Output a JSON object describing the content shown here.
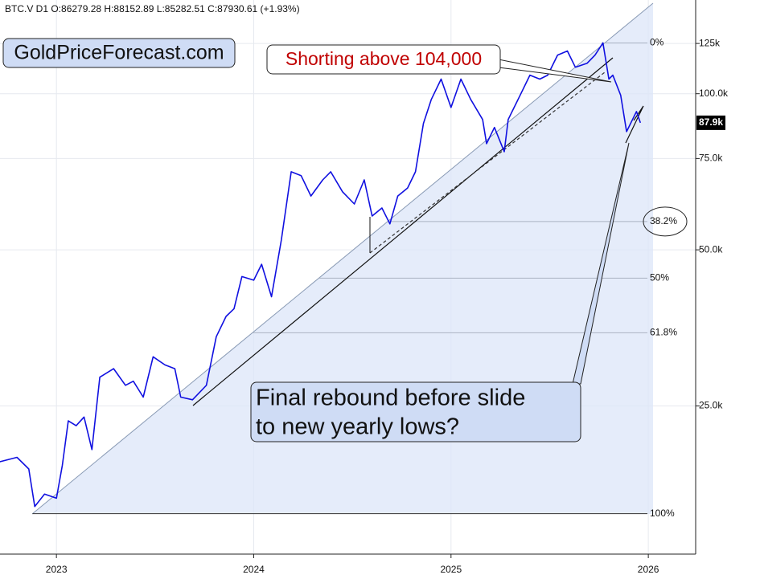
{
  "chart_data": {
    "type": "line",
    "header": "BTC.V  D1  O:86279.28  H:88152.89  L:85282.51  C:87930.61  (+1.93%)",
    "annotations": {
      "site": "GoldPriceForecast.com",
      "shorting": "Shorting above 104,000",
      "rebound": [
        "Final rebound before slide",
        "to new yearly lows?"
      ]
    },
    "log_y": true,
    "grid": true,
    "xlim": [
      2022.714,
      2026.24
    ],
    "xticks": [
      2023,
      2024,
      2025,
      2026
    ],
    "ylim": [
      12950,
      151600
    ],
    "yticks": [
      {
        "value": 25000,
        "label": "25.0k"
      },
      {
        "value": 50000,
        "label": "50.0k"
      },
      {
        "value": 75000,
        "label": "75.0k"
      },
      {
        "value": 100000,
        "label": "100.0k"
      },
      {
        "value": 125000,
        "label": "125k"
      }
    ],
    "last_price": {
      "value": 87900,
      "label": "87.9k"
    },
    "levels": [
      {
        "value": 125300,
        "label": "0%"
      },
      {
        "value": 56700,
        "label": "38.2%"
      },
      {
        "value": 44100,
        "label": "50%"
      },
      {
        "value": 34600,
        "label": "61.8%"
      },
      {
        "value": 15500,
        "label": "100%"
      }
    ],
    "series": [
      {
        "name": "BTC.V",
        "color": "#1010e0",
        "x": [
          2022.71,
          2022.8,
          2022.86,
          2022.89,
          2022.94,
          2023.0,
          2023.03,
          2023.06,
          2023.1,
          2023.14,
          2023.18,
          2023.22,
          2023.29,
          2023.35,
          2023.39,
          2023.44,
          2023.49,
          2023.55,
          2023.6,
          2023.63,
          2023.69,
          2023.76,
          2023.81,
          2023.86,
          2023.9,
          2023.94,
          2024.0,
          2024.04,
          2024.09,
          2024.14,
          2024.19,
          2024.24,
          2024.29,
          2024.35,
          2024.39,
          2024.45,
          2024.51,
          2024.56,
          2024.6,
          2024.65,
          2024.69,
          2024.73,
          2024.78,
          2024.82,
          2024.86,
          2024.9,
          2024.95,
          2025.0,
          2025.05,
          2025.1,
          2025.16,
          2025.18,
          2025.22,
          2025.27,
          2025.29,
          2025.35,
          2025.4,
          2025.45,
          2025.49,
          2025.54,
          2025.59,
          2025.63,
          2025.69,
          2025.73,
          2025.77,
          2025.8,
          2025.82,
          2025.86,
          2025.89,
          2025.92,
          2025.94,
          2025.96
        ],
        "values": [
          19500,
          19900,
          18900,
          16000,
          16900,
          16600,
          19200,
          23400,
          22900,
          23800,
          20600,
          28400,
          29500,
          27400,
          27900,
          26000,
          31100,
          30000,
          29500,
          26000,
          25700,
          27400,
          34000,
          37200,
          38500,
          44400,
          43700,
          46900,
          40600,
          52200,
          70700,
          69500,
          63500,
          68200,
          70700,
          64700,
          61300,
          68200,
          58100,
          60200,
          56100,
          63500,
          65800,
          70700,
          87600,
          97500,
          106700,
          94100,
          106700,
          97500,
          89200,
          80100,
          86100,
          77300,
          89200,
          99300,
          108600,
          106700,
          108600,
          118700,
          120900,
          112500,
          114500,
          118700,
          125300,
          106700,
          108600,
          99300,
          84500,
          89200,
          92400,
          87900
        ]
      }
    ]
  }
}
